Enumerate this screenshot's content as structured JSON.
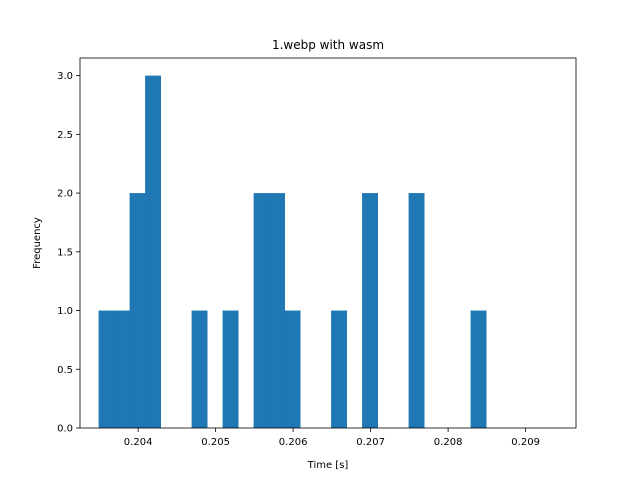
{
  "chart_data": {
    "type": "bar",
    "title": "1.webp with wasm",
    "xlabel": "Time [s]",
    "ylabel": "Frequency",
    "color": "#1f77b4",
    "xlim": [
      0.20325,
      0.20965
    ],
    "ylim": [
      0,
      3.15
    ],
    "xticks": [
      {
        "value": 0.204,
        "label": "0.204"
      },
      {
        "value": 0.205,
        "label": "0.205"
      },
      {
        "value": 0.206,
        "label": "0.206"
      },
      {
        "value": 0.207,
        "label": "0.207"
      },
      {
        "value": 0.208,
        "label": "0.208"
      },
      {
        "value": 0.209,
        "label": "0.209"
      }
    ],
    "yticks": [
      {
        "value": 0.0,
        "label": "0.0"
      },
      {
        "value": 0.5,
        "label": "0.5"
      },
      {
        "value": 1.0,
        "label": "1.0"
      },
      {
        "value": 1.5,
        "label": "1.5"
      },
      {
        "value": 2.0,
        "label": "2.0"
      },
      {
        "value": 2.5,
        "label": "2.5"
      },
      {
        "value": 3.0,
        "label": "3.0"
      }
    ],
    "bin_start": 0.20349,
    "bin_width": 0.0002,
    "counts": [
      1,
      1,
      2,
      3,
      0,
      0,
      1,
      0,
      1,
      0,
      2,
      2,
      1,
      0,
      0,
      1,
      0,
      2,
      0,
      0,
      2,
      0,
      0,
      0,
      1
    ],
    "grid": false,
    "legend": false
  }
}
